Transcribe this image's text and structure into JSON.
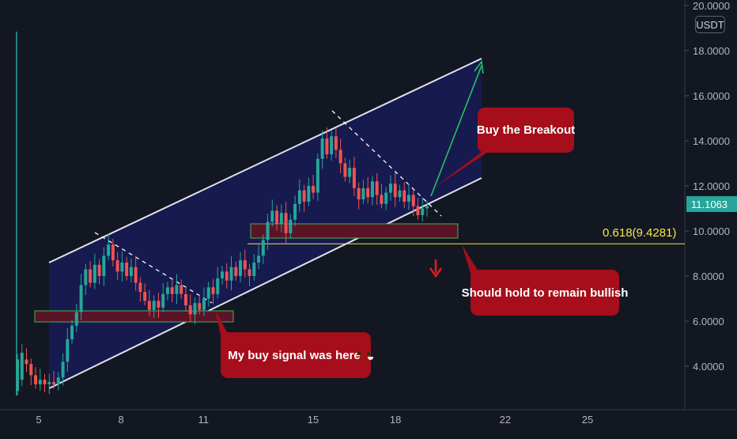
{
  "chart_data": {
    "type": "candlestick",
    "currency_badge": "USDT",
    "last_price_label": "11.1063",
    "y_axis": {
      "ylim": [
        2.6,
        20.0
      ],
      "ticks": [
        "20.0000",
        "18.0000",
        "16.0000",
        "14.0000",
        "12.0000",
        "10.0000",
        "8.0000",
        "6.0000",
        "4.0000"
      ]
    },
    "x_axis": {
      "ticks": [
        "5",
        "8",
        "11",
        "15",
        "18",
        "22",
        "25"
      ]
    },
    "fib_label": "0.618(9.4281)",
    "fib_level": 9.4281,
    "colors": {
      "background": "#131722",
      "up": "#26a69a",
      "down": "#ef5350",
      "channel_fill": "#161a52",
      "channel_line": "#e0e3eb",
      "zone_fill": "#5a1428",
      "zone_border": "#4caf50",
      "fib_line": "#f5e74a",
      "arrow_up": "#22c55e",
      "arrow_down": "#e31b23",
      "bubble": "#a50e1a"
    },
    "annotations": {
      "breakout": "Buy the Breakout",
      "buy_signal": "My buy signal was here",
      "hold": "Should hold to remain bullish"
    }
  }
}
